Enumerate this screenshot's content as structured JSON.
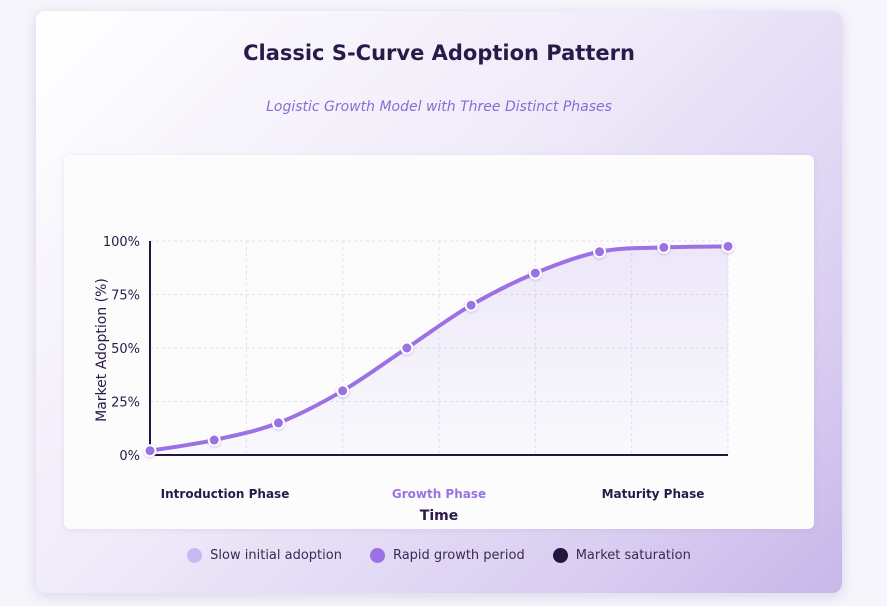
{
  "title": "Classic S-Curve Adoption Pattern",
  "subtitle": "Logistic Growth Model with Three Distinct Phases",
  "legend": {
    "items": [
      {
        "label": "Slow initial adoption",
        "color": "#c9b8ef"
      },
      {
        "label": "Rapid growth period",
        "color": "#9b72e4"
      },
      {
        "label": "Market saturation",
        "color": "#221640"
      }
    ]
  },
  "chart_data": {
    "type": "line",
    "xlabel": "Time",
    "ylabel": "Market Adoption (%)",
    "x_ticks": [
      "Introduction Phase",
      "Growth Phase",
      "Maturity Phase"
    ],
    "x_tick_colors": [
      "#2a1a48",
      "#9b72e4",
      "#2a1a48"
    ],
    "y_ticks": [
      "0%",
      "25%",
      "50%",
      "75%",
      "100%"
    ],
    "ylim": [
      0,
      100
    ],
    "xlim": [
      0,
      9
    ],
    "grid": true,
    "series": [
      {
        "x": [
          0,
          1,
          2,
          3,
          4,
          5,
          6,
          7,
          8,
          9
        ],
        "values": [
          2,
          7,
          15,
          30,
          50,
          70,
          85,
          95,
          97,
          97.5
        ],
        "line_color": "#9b72e4"
      }
    ]
  }
}
